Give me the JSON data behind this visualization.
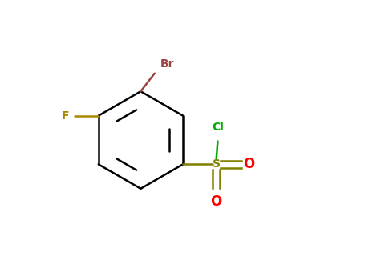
{
  "background_color": "#FFFFFF",
  "ring_color": "#000000",
  "inner_ring_color": "#000000",
  "br_color": "#994444",
  "br_bond_color": "#994444",
  "f_color": "#AA8800",
  "f_bond_color": "#AA8800",
  "s_color": "#808000",
  "s_bond_color": "#808000",
  "cl_color": "#00AA00",
  "cl_bond_color": "#00AA00",
  "o_color": "#FF0000",
  "o_bond_color": "#808000",
  "label_br": "Br",
  "label_f": "F",
  "label_cl": "Cl",
  "label_s": "S",
  "label_o": "O",
  "figsize": [
    4.55,
    3.5
  ],
  "dpi": 100
}
